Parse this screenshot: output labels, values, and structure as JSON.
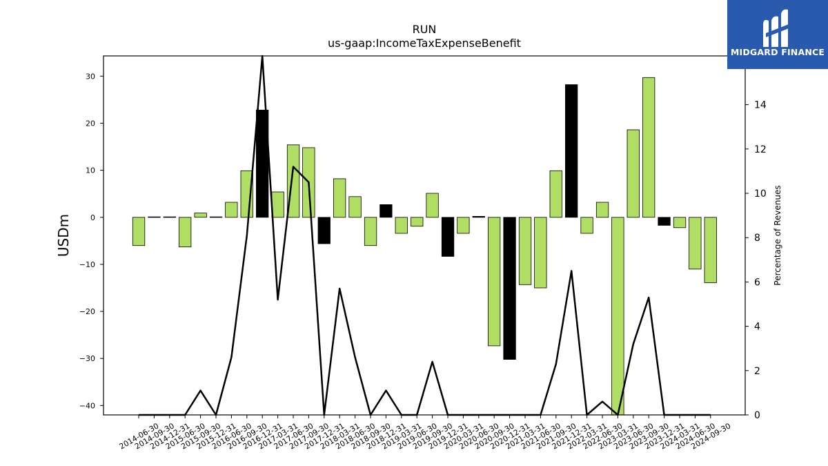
{
  "chart_data": {
    "type": "bar",
    "title": "RUN",
    "subtitle": "us-gaap:IncomeTaxExpenseBenefit",
    "ylabel": "USDm",
    "y2label": "Percentage of Revenues",
    "ylim": [
      -42,
      34.3
    ],
    "y2lim": [
      0,
      16.2
    ],
    "yticks": [
      -40,
      -30,
      -20,
      -10,
      0,
      10,
      20,
      30
    ],
    "y2ticks": [
      0,
      2,
      4,
      6,
      8,
      10,
      12,
      14
    ],
    "categories": [
      "2014-06-30",
      "2014-09-30",
      "2014-12-31",
      "2015-06-30",
      "2015-09-30",
      "2015-12-31",
      "2016-06-30",
      "2016-09-30",
      "2016-12-31",
      "2017-03-31",
      "2017-06-30",
      "2017-09-30",
      "2017-12-31",
      "2018-03-31",
      "2018-06-30",
      "2018-09-30",
      "2018-12-31",
      "2019-03-31",
      "2019-06-30",
      "2019-09-30",
      "2019-12-31",
      "2020-03-31",
      "2020-06-30",
      "2020-09-30",
      "2020-12-31",
      "2021-03-31",
      "2021-06-30",
      "2021-09-30",
      "2021-12-31",
      "2022-03-31",
      "2022-06-30",
      "2023-03-31",
      "2023-06-30",
      "2023-09-30",
      "2023-12-31",
      "2024-03-31",
      "2024-06-30",
      "2024-09-30"
    ],
    "series": [
      {
        "type": "bar",
        "values": [
          -6.0,
          0.1,
          0.1,
          -6.3,
          0.9,
          0.1,
          3.2,
          9.9,
          22.8,
          5.4,
          15.4,
          14.8,
          -5.6,
          8.2,
          4.4,
          -6.0,
          2.7,
          -3.4,
          -1.9,
          5.1,
          -8.3,
          -3.4,
          0.2,
          -27.3,
          -30.2,
          -14.3,
          -15.0,
          9.9,
          28.2,
          -3.4,
          3.2,
          -42.0,
          18.6,
          29.7,
          -1.7,
          -2.2,
          -11.0,
          -13.9
        ],
        "colors": [
          "#b0dd63",
          "#b0dd63",
          "#b0dd63",
          "#b0dd63",
          "#b0dd63",
          "#b0dd63",
          "#b0dd63",
          "#b0dd63",
          "#000000",
          "#b0dd63",
          "#b0dd63",
          "#b0dd63",
          "#000000",
          "#b0dd63",
          "#b0dd63",
          "#b0dd63",
          "#000000",
          "#b0dd63",
          "#b0dd63",
          "#b0dd63",
          "#000000",
          "#b0dd63",
          "#000000",
          "#b0dd63",
          "#000000",
          "#b0dd63",
          "#b0dd63",
          "#b0dd63",
          "#000000",
          "#b0dd63",
          "#b0dd63",
          "#b0dd63",
          "#b0dd63",
          "#b0dd63",
          "#000000",
          "#b0dd63",
          "#b0dd63",
          "#b0dd63"
        ]
      },
      {
        "type": "line",
        "axis": "right",
        "color": "#000000",
        "values": [
          0,
          0,
          0,
          0,
          1.1,
          0,
          2.6,
          8.1,
          16.2,
          5.2,
          11.2,
          10.5,
          0,
          5.7,
          2.6,
          0,
          1.1,
          0,
          0,
          2.4,
          0,
          0,
          0,
          0,
          0,
          0,
          0,
          2.3,
          6.5,
          0,
          0.6,
          0,
          3.2,
          5.3,
          0,
          0,
          0,
          0
        ]
      }
    ],
    "grid": false,
    "legend": "none"
  },
  "logo": {
    "text": "MIDGARD FINANCE",
    "bg_color": "#2a5aad"
  }
}
